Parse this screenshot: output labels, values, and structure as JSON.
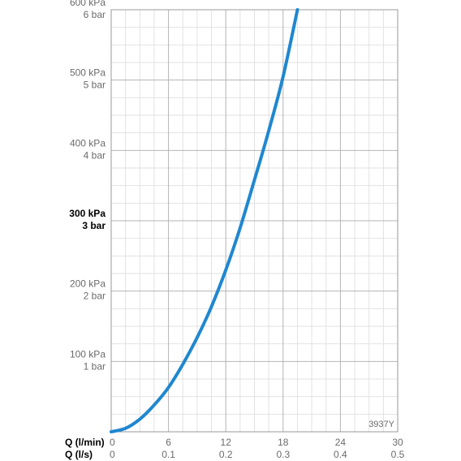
{
  "chart_data": {
    "type": "line",
    "xlabel": "Q (l/min)",
    "xlabel_secondary": "Q (l/s)",
    "x_ticks_primary": [
      "0",
      "6",
      "12",
      "18",
      "24",
      "30"
    ],
    "x_ticks_secondary": [
      "0",
      "0.1",
      "0.2",
      "0.3",
      "0.4",
      "0.5"
    ],
    "xlim": [
      0,
      30
    ],
    "ylim": [
      0,
      600
    ],
    "y_ticks": [
      {
        "value": 100,
        "kpa": "100 kPa",
        "bar": "1 bar",
        "bold": false
      },
      {
        "value": 200,
        "kpa": "200 kPa",
        "bar": "2 bar",
        "bold": false
      },
      {
        "value": 300,
        "kpa": "300 kPa",
        "bar": "3 bar",
        "bold": true
      },
      {
        "value": 400,
        "kpa": "400 kPa",
        "bar": "4 bar",
        "bold": false
      },
      {
        "value": 500,
        "kpa": "500 kPa",
        "bar": "5 bar",
        "bold": false
      },
      {
        "value": 600,
        "kpa": "600 kPa",
        "bar": "6 bar",
        "bold": false
      }
    ],
    "grid": true,
    "series": [
      {
        "color": "#1f87d0",
        "x": [
          0,
          1.5,
          3,
          4.5,
          6,
          7.5,
          9,
          10.5,
          12,
          13.5,
          15,
          16.5,
          18,
          19.5
        ],
        "y": [
          0,
          5,
          18,
          38,
          63,
          96,
          134,
          178,
          230,
          290,
          358,
          428,
          505,
          600
        ]
      }
    ],
    "annotation": "3937Y"
  }
}
